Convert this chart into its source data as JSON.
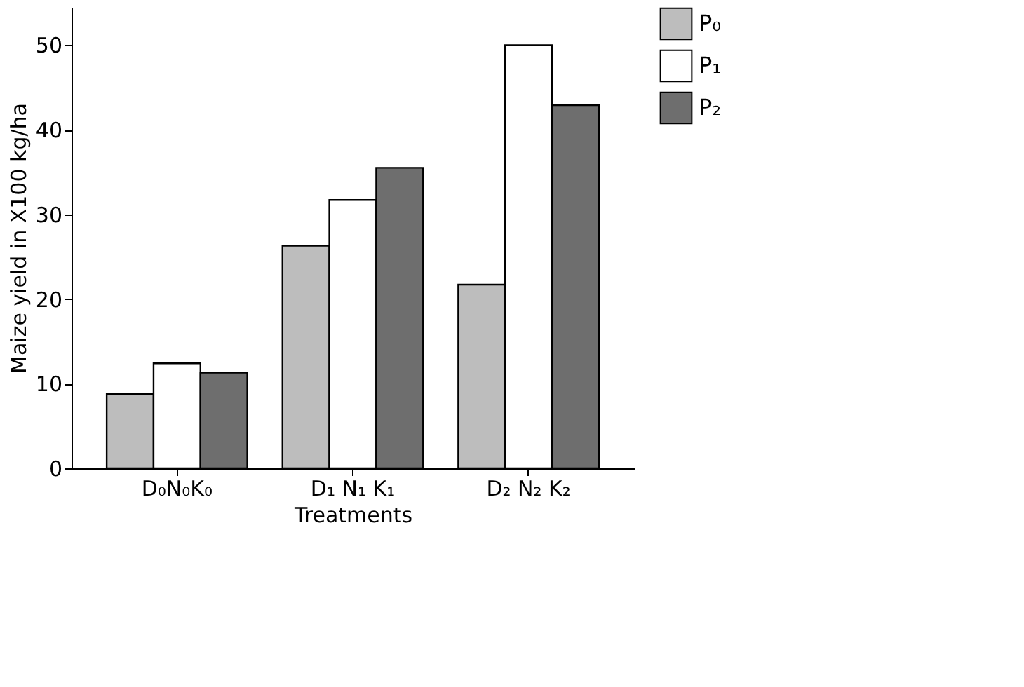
{
  "chart_data": {
    "type": "bar",
    "xlabel": "Treatments",
    "ylabel": "Maize yield in X100 kg/ha",
    "categories": [
      "D₀N₀K₀",
      "D₁ N₁ K₁",
      "D₂ N₂ K₂"
    ],
    "series": [
      {
        "name": "P₀",
        "color": "#bdbdbd",
        "values": [
          8.8,
          26.3,
          21.7
        ]
      },
      {
        "name": "P₁",
        "color": "#ffffff",
        "values": [
          12.4,
          31.7,
          50
        ]
      },
      {
        "name": "P₂",
        "color": "#6e6e6e",
        "values": [
          11.3,
          35.5,
          42.9
        ]
      }
    ],
    "ylim": [
      0,
      54.5
    ],
    "yticks": [
      0,
      10,
      20,
      30,
      40,
      50
    ],
    "grid": false,
    "legend": "top right"
  }
}
